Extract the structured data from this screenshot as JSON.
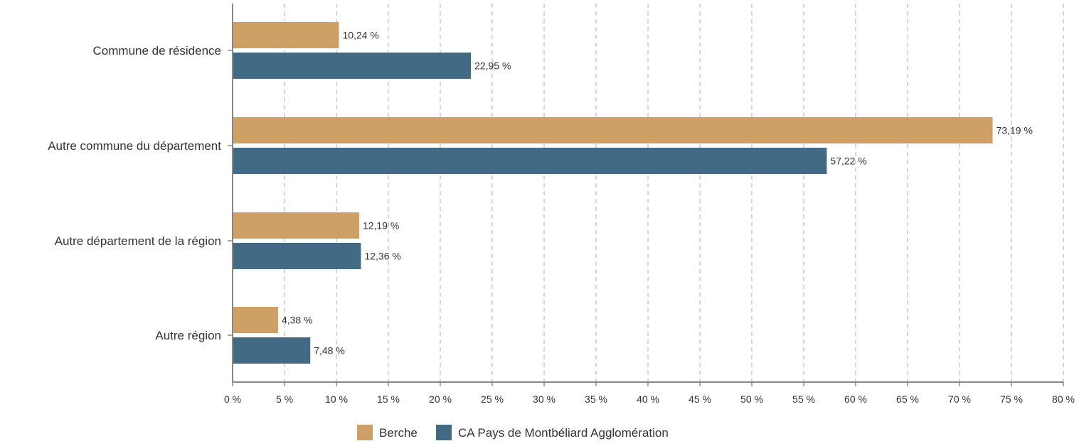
{
  "chart_data": {
    "type": "bar",
    "orientation": "horizontal",
    "categories": [
      "Commune de résidence",
      "Autre commune du département",
      "Autre département de la région",
      "Autre région"
    ],
    "series": [
      {
        "name": "Berche",
        "color": "#CFA066",
        "values": [
          10.24,
          73.19,
          12.19,
          4.38
        ],
        "labels": [
          "10,24 %",
          "73,19 %",
          "12,19 %",
          "4,38 %"
        ]
      },
      {
        "name": "CA Pays de Montbéliard Agglomération",
        "color": "#426A84",
        "values": [
          22.95,
          57.22,
          12.36,
          7.48
        ],
        "labels": [
          "22,95 %",
          "57,22 %",
          "12,36 %",
          "7,48 %"
        ]
      }
    ],
    "xlim": [
      0,
      80
    ],
    "x_ticks": [
      0,
      5,
      10,
      15,
      20,
      25,
      30,
      35,
      40,
      45,
      50,
      55,
      60,
      65,
      70,
      75,
      80
    ],
    "x_tick_labels": [
      "0 %",
      "5 %",
      "10 %",
      "15 %",
      "20 %",
      "25 %",
      "30 %",
      "35 %",
      "40 %",
      "45 %",
      "50 %",
      "55 %",
      "60 %",
      "65 %",
      "70 %",
      "75 %",
      "80 %"
    ],
    "grid": "vertical-dashed",
    "legend_position": "bottom",
    "axis_color": "#888888",
    "grid_color": "#BBBBBB"
  }
}
